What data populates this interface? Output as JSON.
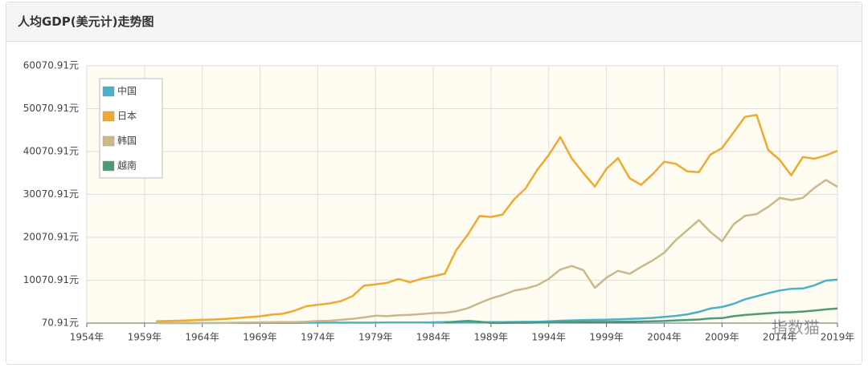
{
  "chart_data": {
    "type": "line",
    "title": "人均GDP(美元计)走势图",
    "watermark": "指数猫",
    "x": [
      1960,
      1961,
      1962,
      1963,
      1964,
      1965,
      1966,
      1967,
      1968,
      1969,
      1970,
      1971,
      1972,
      1973,
      1974,
      1975,
      1976,
      1977,
      1978,
      1979,
      1980,
      1981,
      1982,
      1983,
      1984,
      1985,
      1986,
      1987,
      1988,
      1989,
      1990,
      1991,
      1992,
      1993,
      1994,
      1995,
      1996,
      1997,
      1998,
      1999,
      2000,
      2001,
      2002,
      2003,
      2004,
      2005,
      2006,
      2007,
      2008,
      2009,
      2010,
      2011,
      2012,
      2013,
      2014,
      2015,
      2016,
      2017,
      2018,
      2019
    ],
    "series": [
      {
        "name": "中国",
        "color": "#4bb0c8",
        "values": [
          90,
          76,
          70,
          74,
          85,
          98,
          104,
          97,
          91,
          100,
          113,
          119,
          132,
          157,
          160,
          178,
          165,
          185,
          156,
          184,
          195,
          197,
          203,
          225,
          251,
          294,
          282,
          252,
          284,
          311,
          318,
          333,
          366,
          377,
          473,
          610,
          709,
          782,
          829,
          873,
          959,
          1053,
          1149,
          1289,
          1509,
          1753,
          2099,
          2694,
          3468,
          3832,
          4550,
          5618,
          6317,
          7051,
          7679,
          8067,
          8148,
          8879,
          9977,
          10217
        ]
      },
      {
        "name": "日本",
        "color": "#f0a830",
        "values": [
          479,
          563,
          633,
          717,
          835,
          919,
          1058,
          1228,
          1450,
          1669,
          2037,
          2272,
          2967,
          3997,
          4354,
          4659,
          5197,
          6335,
          8821,
          9105,
          9463,
          10361,
          9578,
          10425,
          10984,
          11585,
          17112,
          20745,
          25052,
          24813,
          25371,
          28925,
          31464,
          35766,
          39269,
          43440,
          38437,
          35022,
          31903,
          36027,
          38532,
          33846,
          32289,
          34808,
          37688,
          37218,
          35434,
          35275,
          39339,
          40855,
          44508,
          48168,
          48603,
          40454,
          38109,
          34524,
          38794,
          38387,
          39159,
          40247
        ]
      },
      {
        "name": "韩国",
        "color": "#c9b98a",
        "values": [
          158,
          94,
          106,
          146,
          124,
          108,
          133,
          161,
          198,
          243,
          279,
          301,
          323,
          406,
          563,
          617,
          834,
          1055,
          1406,
          1784,
          1715,
          1883,
          1993,
          2199,
          2413,
          2482,
          2835,
          3555,
          4749,
          5817,
          6610,
          7637,
          8127,
          8885,
          10385,
          12565,
          13403,
          12398,
          8282,
          10672,
          12257,
          11561,
          13165,
          14673,
          16496,
          19403,
          21743,
          24086,
          21350,
          19144,
          23087,
          25096,
          25467,
          27182,
          29250,
          28737,
          29274,
          31601,
          33447,
          31846
        ]
      },
      {
        "name": "越南",
        "color": "#4e9a78",
        "values": [
          null,
          null,
          null,
          null,
          null,
          null,
          null,
          null,
          null,
          null,
          null,
          null,
          null,
          null,
          null,
          null,
          null,
          null,
          null,
          null,
          null,
          null,
          null,
          null,
          null,
          231,
          422,
          583,
          402,
          94,
          95,
          140,
          141,
          189,
          223,
          288,
          338,
          361,
          361,
          371,
          394,
          410,
          440,
          489,
          554,
          699,
          797,
          919,
          1165,
          1232,
          1684,
          1954,
          2190,
          2367,
          2558,
          2595,
          2760,
          2992,
          3267,
          3491
        ]
      }
    ],
    "xlim": [
      1954,
      2019
    ],
    "xticks": [
      {
        "value": 1954,
        "label": "1954年"
      },
      {
        "value": 1959,
        "label": "1959年"
      },
      {
        "value": 1964,
        "label": "1964年"
      },
      {
        "value": 1969,
        "label": "1969年"
      },
      {
        "value": 1974,
        "label": "1974年"
      },
      {
        "value": 1979,
        "label": "1979年"
      },
      {
        "value": 1984,
        "label": "1984年"
      },
      {
        "value": 1989,
        "label": "1989年"
      },
      {
        "value": 1994,
        "label": "1994年"
      },
      {
        "value": 1999,
        "label": "1999年"
      },
      {
        "value": 2004,
        "label": "2004年"
      },
      {
        "value": 2009,
        "label": "2009年"
      },
      {
        "value": 2014,
        "label": "2014年"
      },
      {
        "value": 2019,
        "label": "2019年"
      }
    ],
    "ylim": [
      70.91,
      60070.91
    ],
    "yticks": [
      {
        "value": 70.91,
        "label": "70.91元"
      },
      {
        "value": 10070.91,
        "label": "10070.91元"
      },
      {
        "value": 20070.91,
        "label": "20070.91元"
      },
      {
        "value": 30070.91,
        "label": "30070.91元"
      },
      {
        "value": 40070.91,
        "label": "40070.91元"
      },
      {
        "value": 50070.91,
        "label": "50070.91元"
      },
      {
        "value": 60070.91,
        "label": "60070.91元"
      }
    ],
    "grid": true,
    "legend": "top-left"
  }
}
